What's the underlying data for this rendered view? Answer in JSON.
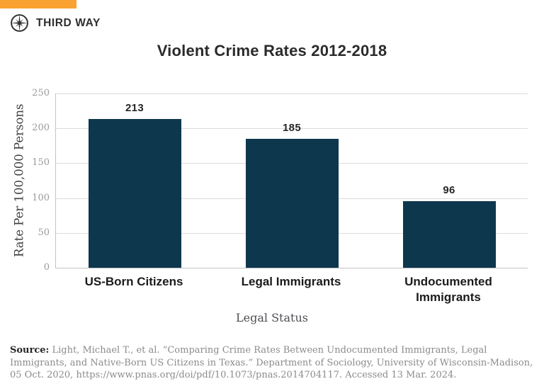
{
  "brand": {
    "logo_text": "THIRD WAY",
    "accent_orange": "#F9A232",
    "logo_icon": "compass-star-icon",
    "logo_color": "#2e2e2e"
  },
  "chart_data": {
    "type": "bar",
    "title": "Violent Crime Rates 2012-2018",
    "categories": [
      "US-Born Citizens",
      "Legal Immigrants",
      "Undocumented Immigrants"
    ],
    "values": [
      213,
      185,
      96
    ],
    "xlabel": "Legal Status",
    "ylabel": "Rate Per 100,000 Persons",
    "ylim": [
      0,
      250
    ],
    "yticks": [
      0,
      50,
      100,
      150,
      200,
      250
    ],
    "grid": true,
    "legend": "none",
    "bar_color": "#0D374D"
  },
  "source": {
    "label": "Source:",
    "text": " Light, Michael T., et al. “Comparing Crime Rates Between Undocumented Immigrants, Legal Immigrants, and Native-Born US Citizens in Texas.” Department of Sociology, University of Wisconsin-Madison, 05 Oct. 2020, https://www.pnas.org/doi/pdf/10.1073/pnas.2014704117. Accessed 13 Mar. 2024."
  }
}
